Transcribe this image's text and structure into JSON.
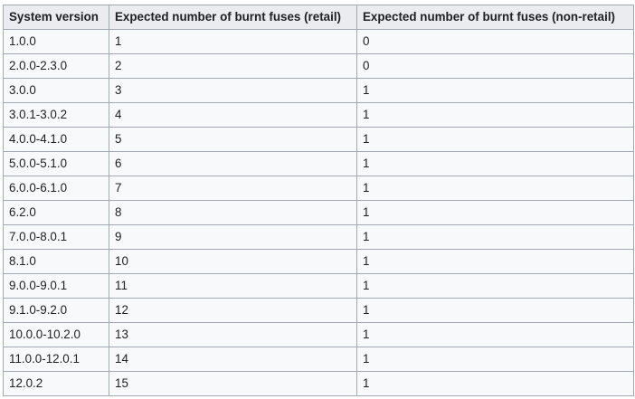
{
  "table": {
    "headers": [
      "System version",
      "Expected number of burnt fuses (retail)",
      "Expected number of burnt fuses (non-retail)"
    ],
    "rows": [
      [
        "1.0.0",
        "1",
        "0"
      ],
      [
        "2.0.0-2.3.0",
        "2",
        "0"
      ],
      [
        "3.0.0",
        "3",
        "1"
      ],
      [
        "3.0.1-3.0.2",
        "4",
        "1"
      ],
      [
        "4.0.0-4.1.0",
        "5",
        "1"
      ],
      [
        "5.0.0-5.1.0",
        "6",
        "1"
      ],
      [
        "6.0.0-6.1.0",
        "7",
        "1"
      ],
      [
        "6.2.0",
        "8",
        "1"
      ],
      [
        "7.0.0-8.0.1",
        "9",
        "1"
      ],
      [
        "8.1.0",
        "10",
        "1"
      ],
      [
        "9.0.0-9.0.1",
        "11",
        "1"
      ],
      [
        "9.1.0-9.2.0",
        "12",
        "1"
      ],
      [
        "10.0.0-10.2.0",
        "13",
        "1"
      ],
      [
        "11.0.0-12.0.1",
        "14",
        "1"
      ],
      [
        "12.0.2",
        "15",
        "1"
      ]
    ]
  }
}
